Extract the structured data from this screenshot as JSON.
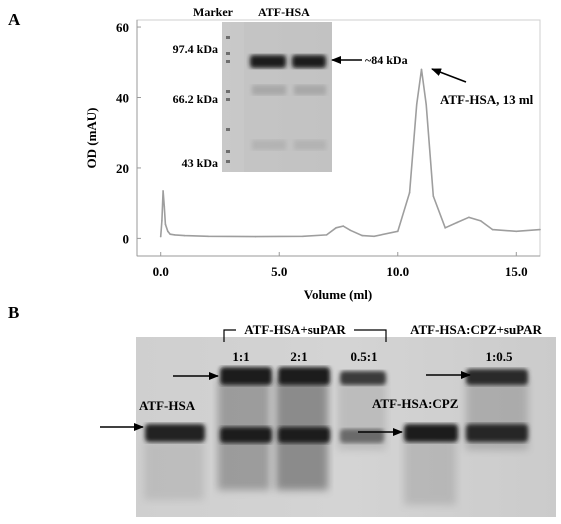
{
  "panel_a": {
    "label": "A",
    "gel": {
      "header_marker": "Marker",
      "header_sample": "ATF-HSA",
      "marker_labels": [
        "97.4 kDa",
        "66.2 kDa",
        "43 kDa"
      ],
      "band_annotation": "~84 kDa"
    },
    "peak_annotation": "ATF-HSA,  13 ml"
  },
  "panel_b": {
    "label": "B",
    "group1_label": "ATF-HSA+suPAR",
    "group2_label": "ATF-HSA:CPZ+suPAR",
    "ratios": [
      "1:1",
      "2:1",
      "0.5:1",
      "1:0.5"
    ],
    "lane_label_atf_hsa": "ATF-HSA",
    "lane_label_atf_hsa_cpz": "ATF-HSA:CPZ"
  },
  "chart_data": {
    "type": "line",
    "xlabel": "Volume (ml)",
    "ylabel": "OD (mAU)",
    "xlim": [
      -1,
      16
    ],
    "ylim": [
      -5,
      62
    ],
    "xticks": [
      "0.0",
      "5.0",
      "10.0",
      "15.0"
    ],
    "yticks": [
      "0",
      "20",
      "40",
      "60"
    ],
    "x": [
      0,
      0.05,
      0.1,
      0.15,
      0.2,
      0.3,
      0.4,
      0.6,
      1,
      2,
      4,
      6,
      7,
      7.4,
      7.7,
      8,
      8.5,
      9,
      10,
      10.5,
      10.8,
      11,
      11.2,
      11.5,
      12,
      12.5,
      13,
      13.5,
      14,
      15,
      16
    ],
    "y": [
      0.5,
      5,
      13.5,
      9,
      4,
      2,
      1.2,
      1,
      0.8,
      0.6,
      0.5,
      0.6,
      1,
      3,
      3.5,
      2.3,
      0.8,
      0.6,
      2,
      13,
      38,
      48,
      38,
      12,
      3,
      4.5,
      6,
      5,
      2.5,
      2,
      2.5
    ]
  }
}
